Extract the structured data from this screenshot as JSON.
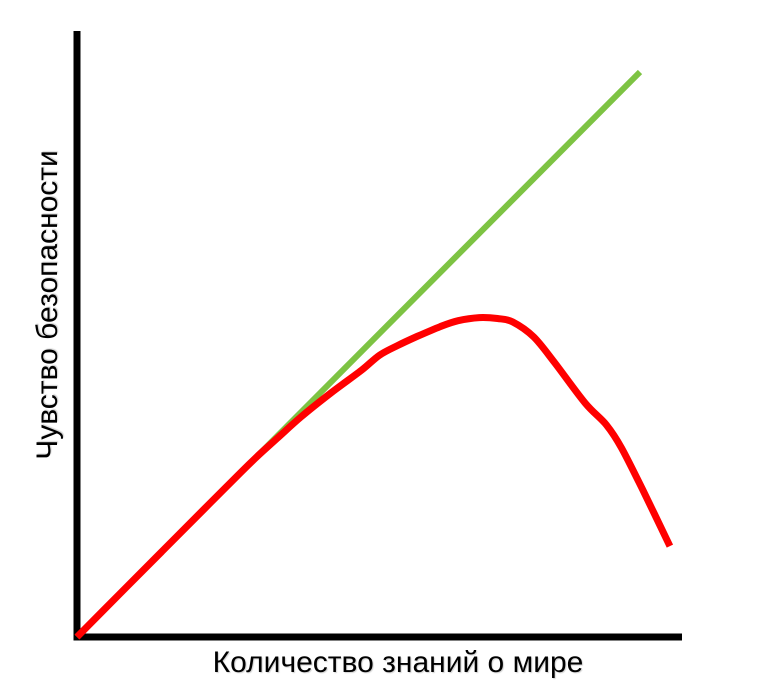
{
  "page": {
    "background": "#ffffff"
  },
  "chart_data": {
    "type": "line",
    "title": "",
    "xlabel": "Количество знаний о мире",
    "ylabel": "Чувство безопасности",
    "xlim": [
      0,
      1
    ],
    "ylim": [
      0,
      1
    ],
    "grid": false,
    "legend_position": "none",
    "axis_color": "#000000",
    "axis_stroke_width": 7,
    "series": [
      {
        "name": "straight-green-line",
        "color": "#7DC343",
        "stroke_width": 6,
        "smooth": false,
        "points": [
          [
            0.0,
            0.0
          ],
          [
            0.9306,
            0.9323
          ]
        ]
      },
      {
        "name": "red-peaked-curve",
        "color": "#FF0000",
        "stroke_width": 7,
        "smooth": true,
        "points": [
          [
            0.0,
            0.0
          ],
          [
            0.07,
            0.0705
          ],
          [
            0.14,
            0.1408
          ],
          [
            0.21,
            0.211
          ],
          [
            0.27,
            0.271
          ],
          [
            0.3,
            0.3
          ],
          [
            0.33,
            0.327
          ],
          [
            0.37,
            0.363
          ],
          [
            0.42,
            0.403
          ],
          [
            0.47,
            0.44
          ],
          [
            0.5,
            0.465
          ],
          [
            0.53,
            0.481
          ],
          [
            0.56,
            0.495
          ],
          [
            0.6,
            0.512
          ],
          [
            0.63,
            0.522
          ],
          [
            0.665,
            0.527
          ],
          [
            0.695,
            0.5255
          ],
          [
            0.72,
            0.52
          ],
          [
            0.755,
            0.495
          ],
          [
            0.79,
            0.452
          ],
          [
            0.84,
            0.386
          ],
          [
            0.875,
            0.35
          ],
          [
            0.9,
            0.312
          ],
          [
            0.935,
            0.243
          ],
          [
            0.98,
            0.15
          ]
        ]
      }
    ]
  }
}
